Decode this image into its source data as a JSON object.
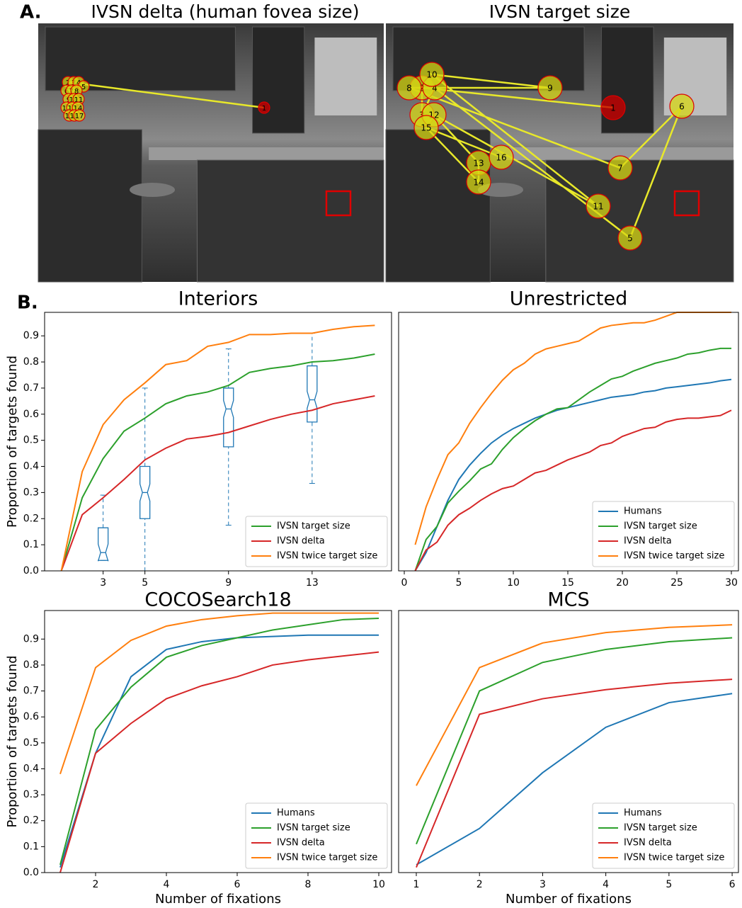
{
  "panel_labels": {
    "a": "A.",
    "b": "B."
  },
  "images": [
    {
      "title": "IVSN delta (human fovea size)",
      "fixations": [
        1,
        2,
        3,
        4,
        5,
        6,
        7,
        8,
        9,
        10,
        11,
        12,
        13,
        14,
        15,
        16,
        17
      ]
    },
    {
      "title": "IVSN target size",
      "fixations": [
        1,
        2,
        3,
        4,
        5,
        6,
        7,
        8,
        9,
        10,
        11,
        12,
        13,
        14,
        15,
        16
      ]
    }
  ],
  "chart_data": [
    {
      "type": "line",
      "title": "Interiors",
      "ylabel": "Proportion of targets found",
      "x": [
        1,
        2,
        3,
        4,
        5,
        6,
        7,
        8,
        9,
        10,
        11,
        12,
        13,
        14,
        15,
        16
      ],
      "xlim": [
        0.2,
        16.8
      ],
      "ylim": [
        0,
        0.99
      ],
      "xticks": [
        3,
        5,
        9,
        13
      ],
      "yticks": [
        {
          "value": 0,
          "label": "0.0"
        },
        {
          "value": 0.1,
          "label": "0.1"
        },
        {
          "value": 0.2,
          "label": "0.2"
        },
        {
          "value": 0.3,
          "label": "0.3"
        },
        {
          "value": 0.4,
          "label": "0.4"
        },
        {
          "value": 0.5,
          "label": "0.5"
        },
        {
          "value": 0.6,
          "label": "0.6"
        },
        {
          "value": 0.7,
          "label": "0.7"
        },
        {
          "value": 0.8,
          "label": "0.8"
        },
        {
          "value": 0.9,
          "label": "0.9"
        }
      ],
      "legend": "lower right",
      "series": [
        {
          "name": "IVSN target size",
          "color": "#2ca02c",
          "values": [
            0,
            0.28,
            0.43,
            0.535,
            0.585,
            0.64,
            0.67,
            0.685,
            0.71,
            0.76,
            0.775,
            0.785,
            0.8,
            0.805,
            0.815,
            0.83
          ]
        },
        {
          "name": "IVSN delta",
          "color": "#d62728",
          "values": [
            0,
            0.215,
            0.28,
            0.35,
            0.425,
            0.47,
            0.505,
            0.515,
            0.53,
            0.555,
            0.58,
            0.6,
            0.615,
            0.64,
            0.655,
            0.67
          ]
        },
        {
          "name": "IVSN twice target size",
          "color": "#ff7f0e",
          "values": [
            0,
            0.38,
            0.56,
            0.655,
            0.72,
            0.79,
            0.805,
            0.86,
            0.875,
            0.905,
            0.905,
            0.91,
            0.91,
            0.925,
            0.935,
            0.94
          ]
        }
      ],
      "box_color": "#1f77b4",
      "boxes": [
        {
          "x": 3,
          "whislo": 0.04,
          "q1": 0.04,
          "med": 0.07,
          "q3": 0.165,
          "whishi": 0.29
        },
        {
          "x": 5,
          "whislo": 0,
          "q1": 0.2,
          "med": 0.3,
          "q3": 0.4,
          "whishi": 0.7
        },
        {
          "x": 9,
          "whislo": 0.175,
          "q1": 0.475,
          "med": 0.62,
          "q3": 0.7,
          "whishi": 0.85
        },
        {
          "x": 13,
          "whislo": 0.335,
          "q1": 0.57,
          "med": 0.655,
          "q3": 0.785,
          "whishi": 0.91
        }
      ]
    },
    {
      "type": "line",
      "title": "Unrestricted",
      "x": [
        1,
        2,
        3,
        4,
        5,
        6,
        7,
        8,
        9,
        10,
        11,
        12,
        13,
        14,
        15,
        16,
        17,
        18,
        19,
        20,
        21,
        22,
        23,
        24,
        25,
        26,
        27,
        28,
        29,
        30
      ],
      "xlim": [
        -0.52,
        30.65
      ],
      "ylim": [
        0,
        0.99
      ],
      "xticks": [
        0,
        5,
        10,
        15,
        20,
        25,
        30
      ],
      "legend": "lower right",
      "series": [
        {
          "name": "Humans",
          "color": "#1f77b4",
          "values": [
            0,
            0.07,
            0.17,
            0.27,
            0.35,
            0.405,
            0.45,
            0.49,
            0.52,
            0.545,
            0.565,
            0.585,
            0.6,
            0.615,
            0.625,
            0.635,
            0.645,
            0.655,
            0.665,
            0.67,
            0.675,
            0.685,
            0.69,
            0.7,
            0.705,
            0.71,
            0.715,
            0.72,
            0.728,
            0.733
          ]
        },
        {
          "name": "IVSN target size",
          "color": "#2ca02c",
          "values": [
            0,
            0.12,
            0.17,
            0.26,
            0.305,
            0.345,
            0.39,
            0.41,
            0.465,
            0.51,
            0.545,
            0.575,
            0.6,
            0.62,
            0.625,
            0.655,
            0.685,
            0.71,
            0.735,
            0.745,
            0.765,
            0.78,
            0.795,
            0.805,
            0.815,
            0.83,
            0.835,
            0.845,
            0.852,
            0.852
          ]
        },
        {
          "name": "IVSN delta",
          "color": "#d62728",
          "values": [
            0,
            0.08,
            0.11,
            0.175,
            0.215,
            0.24,
            0.27,
            0.295,
            0.315,
            0.325,
            0.35,
            0.375,
            0.385,
            0.405,
            0.425,
            0.44,
            0.455,
            0.48,
            0.49,
            0.515,
            0.53,
            0.545,
            0.55,
            0.57,
            0.58,
            0.585,
            0.585,
            0.59,
            0.595,
            0.615
          ]
        },
        {
          "name": "IVSN twice target size",
          "color": "#ff7f0e",
          "values": [
            0.1,
            0.245,
            0.35,
            0.445,
            0.49,
            0.565,
            0.625,
            0.68,
            0.73,
            0.77,
            0.795,
            0.83,
            0.85,
            0.86,
            0.87,
            0.88,
            0.905,
            0.93,
            0.94,
            0.945,
            0.95,
            0.95,
            0.96,
            0.975,
            0.99,
            0.99,
            0.99,
            0.99,
            0.99,
            0.99
          ]
        }
      ]
    },
    {
      "type": "line",
      "title": "COCOSearch18",
      "ylabel": "Proportion of targets found",
      "xlabel": "Number of fixations",
      "x": [
        1,
        2,
        3,
        4,
        5,
        6,
        7,
        8,
        9,
        10
      ],
      "xlim": [
        0.56,
        10.36
      ],
      "ylim": [
        0,
        1.01
      ],
      "xticks": [
        2,
        4,
        6,
        8,
        10
      ],
      "yticks": [
        {
          "value": 0,
          "label": "0.0"
        },
        {
          "value": 0.1,
          "label": "0.1"
        },
        {
          "value": 0.2,
          "label": "0.2"
        },
        {
          "value": 0.3,
          "label": "0.3"
        },
        {
          "value": 0.4,
          "label": "0.4"
        },
        {
          "value": 0.5,
          "label": "0.5"
        },
        {
          "value": 0.6,
          "label": "0.6"
        },
        {
          "value": 0.7,
          "label": "0.7"
        },
        {
          "value": 0.8,
          "label": "0.8"
        },
        {
          "value": 0.9,
          "label": "0.9"
        }
      ],
      "legend": "lower right",
      "series": [
        {
          "name": "Humans",
          "color": "#1f77b4",
          "values": [
            0.02,
            0.46,
            0.755,
            0.86,
            0.89,
            0.905,
            0.91,
            0.915,
            0.915,
            0.915
          ]
        },
        {
          "name": "IVSN target size",
          "color": "#2ca02c",
          "values": [
            0.03,
            0.55,
            0.715,
            0.83,
            0.875,
            0.905,
            0.935,
            0.955,
            0.975,
            0.98
          ]
        },
        {
          "name": "IVSN delta",
          "color": "#d62728",
          "values": [
            0,
            0.46,
            0.575,
            0.67,
            0.72,
            0.755,
            0.8,
            0.82,
            0.835,
            0.85
          ]
        },
        {
          "name": "IVSN twice target size",
          "color": "#ff7f0e",
          "values": [
            0.38,
            0.79,
            0.895,
            0.95,
            0.975,
            0.99,
            1.0,
            1.0,
            1.0,
            1.0
          ]
        }
      ]
    },
    {
      "type": "line",
      "title": "MCS",
      "xlabel": "Number of fixations",
      "x": [
        1,
        2,
        3,
        4,
        5,
        6
      ],
      "xlim": [
        0.72,
        6.1
      ],
      "ylim": [
        0,
        1.01
      ],
      "xticks": [
        1,
        2,
        3,
        4,
        5,
        6
      ],
      "legend": "lower right",
      "series": [
        {
          "name": "Humans",
          "color": "#1f77b4",
          "values": [
            0.03,
            0.17,
            0.385,
            0.56,
            0.655,
            0.69
          ]
        },
        {
          "name": "IVSN target size",
          "color": "#2ca02c",
          "values": [
            0.11,
            0.7,
            0.81,
            0.86,
            0.89,
            0.905
          ]
        },
        {
          "name": "IVSN delta",
          "color": "#d62728",
          "values": [
            0.02,
            0.61,
            0.67,
            0.705,
            0.73,
            0.745
          ]
        },
        {
          "name": "IVSN twice target size",
          "color": "#ff7f0e",
          "values": [
            0.335,
            0.79,
            0.885,
            0.925,
            0.945,
            0.955
          ]
        }
      ]
    }
  ]
}
